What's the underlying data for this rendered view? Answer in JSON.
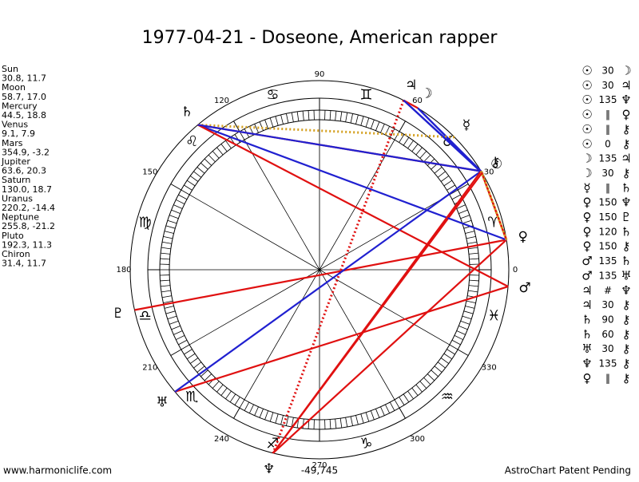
{
  "header": {
    "title": "1977-04-21 - Doseone, American rapper"
  },
  "planets": [
    {
      "name": "Sun",
      "glyph": "☉",
      "coords": "30.8, 11.7"
    },
    {
      "name": "Moon",
      "glyph": "☽",
      "coords": "58.7, 17.0"
    },
    {
      "name": "Mercury",
      "glyph": "☿",
      "coords": "44.5, 18.8"
    },
    {
      "name": "Venus",
      "glyph": "♀",
      "coords": "9.1, 7.9"
    },
    {
      "name": "Mars",
      "glyph": "♂",
      "coords": "354.9, -3.2"
    },
    {
      "name": "Jupiter",
      "glyph": "♃",
      "coords": "63.6, 20.3"
    },
    {
      "name": "Saturn",
      "glyph": "♄",
      "coords": "130.0, 18.7"
    },
    {
      "name": "Uranus",
      "glyph": "♅",
      "coords": "220.2, -14.4"
    },
    {
      "name": "Neptune",
      "glyph": "♆",
      "coords": "255.8, -21.2"
    },
    {
      "name": "Pluto",
      "glyph": "♇",
      "coords": "192.3, 11.3"
    },
    {
      "name": "Chiron",
      "glyph": "⚷",
      "coords": "31.4, 11.7"
    }
  ],
  "signs": [
    "♈",
    "♉",
    "♊",
    "♋",
    "♌",
    "♍",
    "♎",
    "♏",
    "♐",
    "♑",
    "♒",
    "♓"
  ],
  "degree_labels": [
    0,
    30,
    60,
    90,
    120,
    150,
    180,
    210,
    240,
    270,
    300,
    330
  ],
  "aspects": [
    {
      "from": "☉",
      "aspect": "30",
      "to": "☽",
      "color": "#2020d0"
    },
    {
      "from": "☉",
      "aspect": "30",
      "to": "♃",
      "color": "#2020d0"
    },
    {
      "from": "☉",
      "aspect": "135",
      "to": "♆",
      "color": "#e01010"
    },
    {
      "from": "☉",
      "aspect": "‖",
      "to": "♀",
      "color": "#d4a020",
      "dotted": true
    },
    {
      "from": "☉",
      "aspect": "‖",
      "to": "⚷",
      "color": "#d4a020",
      "dotted": true
    },
    {
      "from": "☉",
      "aspect": "0",
      "to": "⚷",
      "color": "#2020d0"
    },
    {
      "from": "☽",
      "aspect": "135",
      "to": "♃",
      "color": "#e01010"
    },
    {
      "from": "☽",
      "aspect": "30",
      "to": "⚷",
      "color": "#2020d0"
    },
    {
      "from": "☿",
      "aspect": "‖",
      "to": "♄",
      "color": "#d4a020",
      "dotted": true
    },
    {
      "from": "♀",
      "aspect": "150",
      "to": "♆",
      "color": "#e01010"
    },
    {
      "from": "♀",
      "aspect": "150",
      "to": "♇",
      "color": "#e01010"
    },
    {
      "from": "♀",
      "aspect": "120",
      "to": "♄",
      "color": "#2020d0"
    },
    {
      "from": "♀",
      "aspect": "150",
      "to": "⚷",
      "color": "#e01010"
    },
    {
      "from": "♂",
      "aspect": "135",
      "to": "♄",
      "color": "#e01010"
    },
    {
      "from": "♂",
      "aspect": "135",
      "to": "♅",
      "color": "#e01010"
    },
    {
      "from": "♃",
      "aspect": "#",
      "to": "♆",
      "color": "#e01010",
      "dotted": true
    },
    {
      "from": "♃",
      "aspect": "30",
      "to": "⚷",
      "color": "#2020d0"
    },
    {
      "from": "♄",
      "aspect": "90",
      "to": "⚷",
      "color": "#e01010"
    },
    {
      "from": "♄",
      "aspect": "60",
      "to": "⚷",
      "color": "#2020d0"
    },
    {
      "from": "♅",
      "aspect": "30",
      "to": "⚷",
      "color": "#2020d0"
    },
    {
      "from": "♆",
      "aspect": "135",
      "to": "⚷",
      "color": "#e01010"
    },
    {
      "from": "♀",
      "aspect": "‖",
      "to": "⚷",
      "color": "#d4a020",
      "dotted": true
    }
  ],
  "score": "-49,745",
  "footer": {
    "left": "www.harmoniclife.com",
    "right": "AstroChart Patent Pending"
  }
}
